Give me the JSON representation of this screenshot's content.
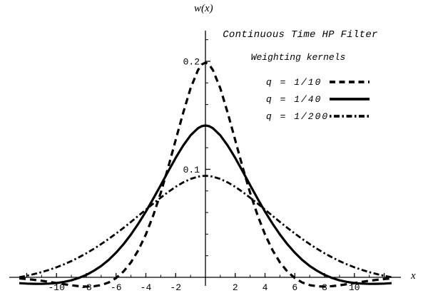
{
  "colors": {
    "ink": "#000000",
    "paper": "#ffffff"
  },
  "chart_data": {
    "type": "line",
    "title": "Continuous Time HP Filter",
    "subtitle": "Weighting kernels",
    "xlabel": "x",
    "ylabel": "w(x)",
    "xlim": [
      -13.2,
      13.1
    ],
    "ylim": [
      -0.008,
      0.228
    ],
    "grid": false,
    "legend_position": "upper-right",
    "x_axis": {
      "tick_minor_step": 1,
      "tick_major_step": 2,
      "labeled_ticks": [
        -10,
        -8,
        -6,
        -4,
        -2,
        2,
        4,
        6,
        8,
        10
      ]
    },
    "y_axis": {
      "tick_minor_step": 0.02,
      "labeled_ticks": [
        0.1,
        0.2
      ],
      "labels": [
        "0.1",
        "0.2"
      ]
    },
    "legend": [
      {
        "label": "q = 1/10",
        "style": "dashed"
      },
      {
        "label": "q = 1/40",
        "style": "solid"
      },
      {
        "label": "q = 1/200",
        "style": "dash-dot"
      }
    ],
    "x": [
      -12.5,
      -12,
      -11.5,
      -11,
      -10.5,
      -10,
      -9.5,
      -9,
      -8.5,
      -8,
      -7.5,
      -7,
      -6.5,
      -6,
      -5.5,
      -5,
      -4.5,
      -4,
      -3.5,
      -3,
      -2.5,
      -2,
      -1.5,
      -1,
      -0.5,
      -0.25,
      0,
      0.25,
      0.5,
      1,
      1.5,
      2,
      2.5,
      3,
      3.5,
      4,
      4.5,
      5,
      5.5,
      6,
      6.5,
      7,
      7.5,
      8,
      8.5,
      9,
      9.5,
      10,
      10.5,
      11,
      11.5,
      12,
      12.5
    ],
    "series": [
      {
        "name": "q = 1/10",
        "style": "dashed",
        "peak": 0.199,
        "values": [
          -0.00098,
          -0.00159,
          -0.00232,
          -0.0032,
          -0.00419,
          -0.00526,
          -0.00636,
          -0.00737,
          -0.00817,
          -0.00857,
          -0.00834,
          -0.00721,
          -0.00474,
          -0.0007,
          0.00544,
          0.01388,
          0.02521,
          0.03971,
          0.05744,
          0.07828,
          0.10182,
          0.12693,
          0.15209,
          0.17489,
          0.19195,
          0.197,
          0.19882,
          0.197,
          0.19195,
          0.17489,
          0.15209,
          0.12693,
          0.10182,
          0.07828,
          0.05744,
          0.03971,
          0.02521,
          0.01388,
          0.00544,
          -0.0007,
          -0.00474,
          -0.00721,
          -0.00834,
          -0.00857,
          -0.00817,
          -0.00737,
          -0.00636,
          -0.00526,
          -0.00419,
          -0.0032,
          -0.00232,
          -0.00159,
          -0.00098
        ]
      },
      {
        "name": "q = 1/40",
        "style": "solid",
        "peak": 0.141,
        "values": [
          -0.00542,
          -0.00579,
          -0.00602,
          -0.00606,
          -0.00583,
          -0.00525,
          -0.00425,
          -0.00274,
          -0.00057,
          0.00223,
          0.00601,
          0.01052,
          0.01611,
          0.02283,
          0.03067,
          0.03966,
          0.04977,
          0.06085,
          0.07287,
          0.08539,
          0.09811,
          0.11049,
          0.12189,
          0.13142,
          0.13806,
          0.13992,
          0.14059,
          0.13992,
          0.13806,
          0.13142,
          0.12189,
          0.11049,
          0.09811,
          0.08539,
          0.07287,
          0.06085,
          0.04977,
          0.03966,
          0.03067,
          0.02283,
          0.01611,
          0.01052,
          0.00601,
          0.00223,
          -0.00057,
          -0.00274,
          -0.00425,
          -0.00525,
          -0.00583,
          -0.00606,
          -0.00602,
          -0.00579,
          -0.00542
        ]
      },
      {
        "name": "q = 1/200",
        "style": "dash-dot",
        "peak": 0.094,
        "values": [
          7e-05,
          0.00139,
          0.00304,
          0.00482,
          0.0069,
          0.0093,
          0.01202,
          0.01508,
          0.01849,
          0.02223,
          0.02632,
          0.03076,
          0.03551,
          0.04052,
          0.04581,
          0.0513,
          0.05694,
          0.06263,
          0.06829,
          0.07379,
          0.07899,
          0.08374,
          0.08784,
          0.09108,
          0.09323,
          0.09381,
          0.09401,
          0.09381,
          0.09323,
          0.09108,
          0.08784,
          0.08374,
          0.07899,
          0.07379,
          0.06829,
          0.06263,
          0.05694,
          0.0513,
          0.04581,
          0.04052,
          0.03551,
          0.03076,
          0.02632,
          0.02223,
          0.01849,
          0.01508,
          0.01202,
          0.0093,
          0.0069,
          0.00482,
          0.00304,
          0.00139,
          7e-05
        ]
      }
    ]
  }
}
